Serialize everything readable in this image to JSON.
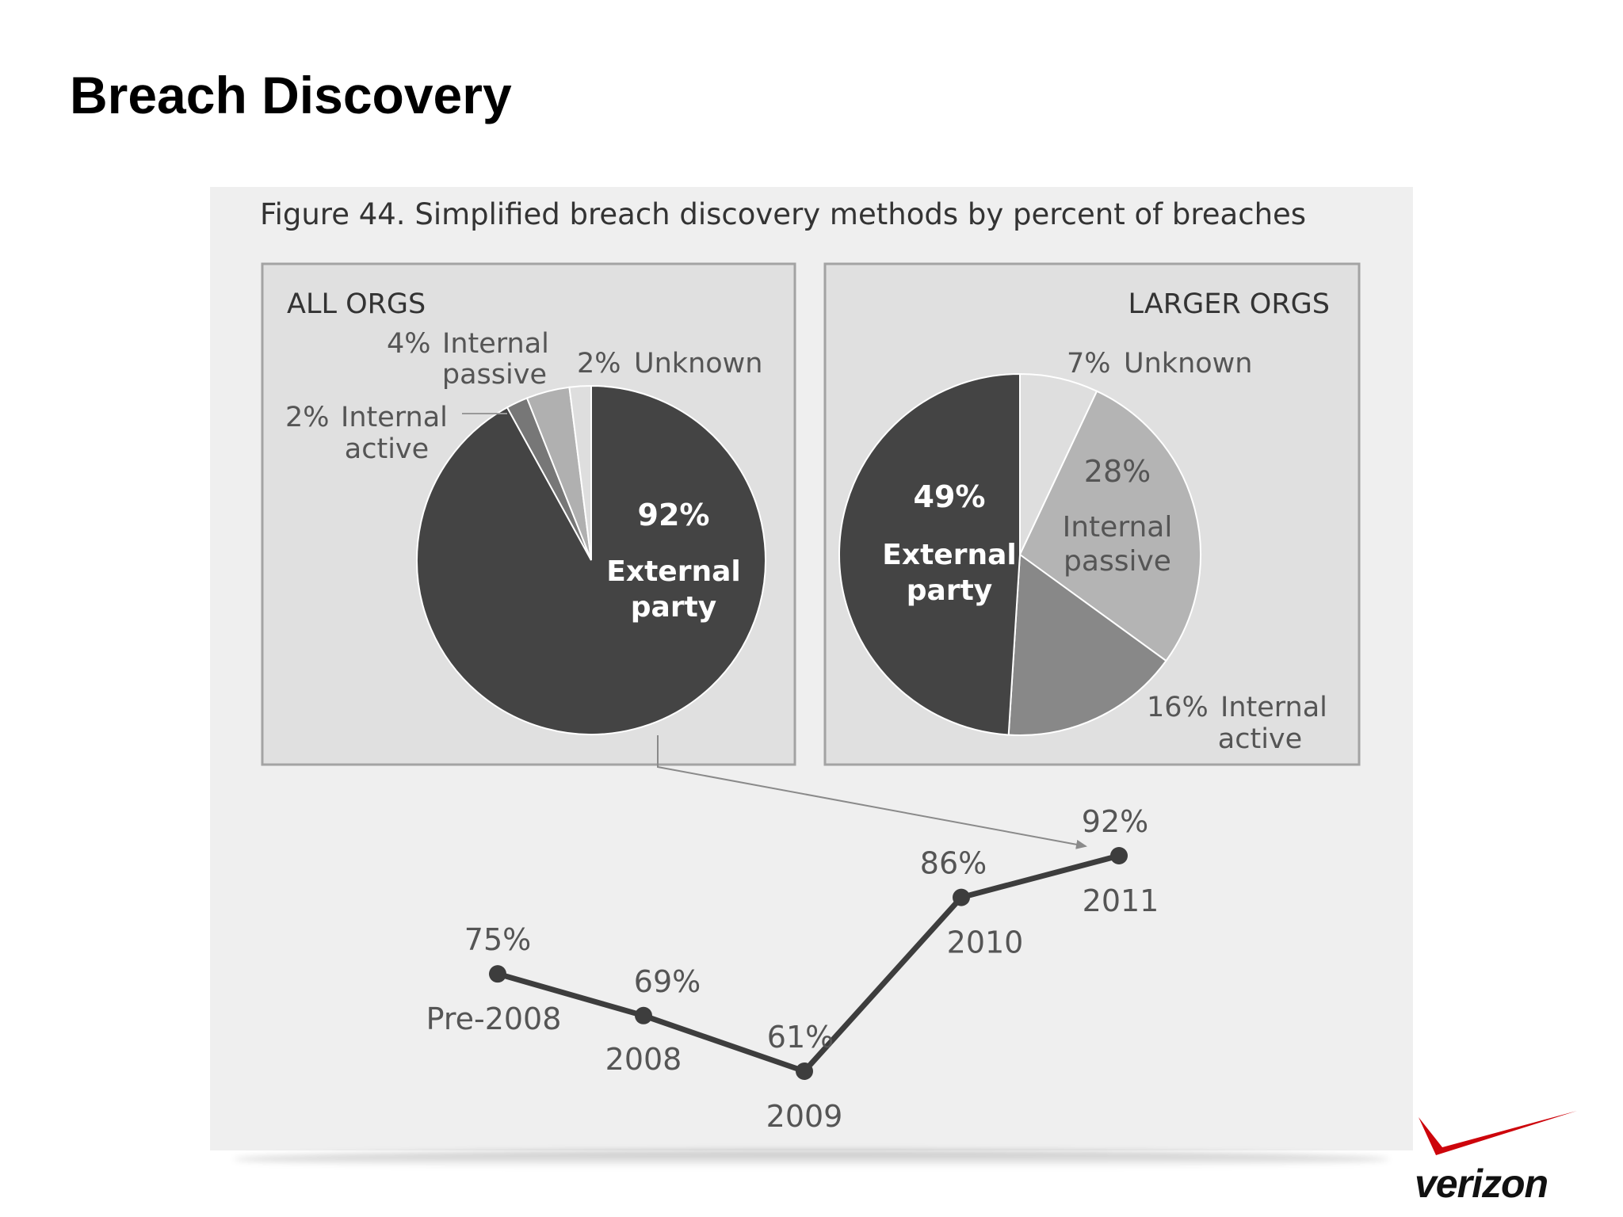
{
  "slide": {
    "title": "Breach Discovery",
    "logo_text": "verizon"
  },
  "colors": {
    "external": "#444444",
    "internal_active_all": "#777777",
    "internal_passive_all": "#b0b0b0",
    "unknown": "#dedede",
    "internal_active_large": "#888888",
    "internal_passive_large": "#b4b4b4",
    "panel_bg": "#e0e0e0",
    "card_bg": "#efefef",
    "logo_red": "#cd040b"
  },
  "chart_data": [
    {
      "type": "pie",
      "title": "Figure 44. Simplified breach discovery methods by percent of breaches",
      "panel_label": "ALL ORGS",
      "slices": [
        {
          "name": "External party",
          "value": 92,
          "label_pct": "92%",
          "label_line1": "External",
          "label_line2": "party"
        },
        {
          "name": "Internal active",
          "value": 2,
          "label_pct": "2%",
          "label_line1": "Internal",
          "label_line2": "active"
        },
        {
          "name": "Internal passive",
          "value": 4,
          "label_pct": "4%",
          "label_line1": "Internal",
          "label_line2": "passive"
        },
        {
          "name": "Unknown",
          "value": 2,
          "label_pct": "2%",
          "label_line1": "Unknown",
          "label_line2": ""
        }
      ]
    },
    {
      "type": "pie",
      "panel_label": "LARGER ORGS",
      "slices": [
        {
          "name": "Unknown",
          "value": 7,
          "label_pct": "7%",
          "label_line1": "Unknown",
          "label_line2": ""
        },
        {
          "name": "Internal passive",
          "value": 28,
          "label_pct": "28%",
          "label_line1": "Internal",
          "label_line2": "passive"
        },
        {
          "name": "Internal active",
          "value": 16,
          "label_pct": "16%",
          "label_line1": "Internal",
          "label_line2": "active"
        },
        {
          "name": "External party",
          "value": 49,
          "label_pct": "49%",
          "label_line1": "External",
          "label_line2": "party"
        }
      ]
    },
    {
      "type": "line",
      "categories": [
        "Pre-2008",
        "2008",
        "2009",
        "2010",
        "2011"
      ],
      "values": [
        75,
        69,
        61,
        86,
        92
      ],
      "value_labels": [
        "75%",
        "69%",
        "61%",
        "86%",
        "92%"
      ]
    }
  ]
}
